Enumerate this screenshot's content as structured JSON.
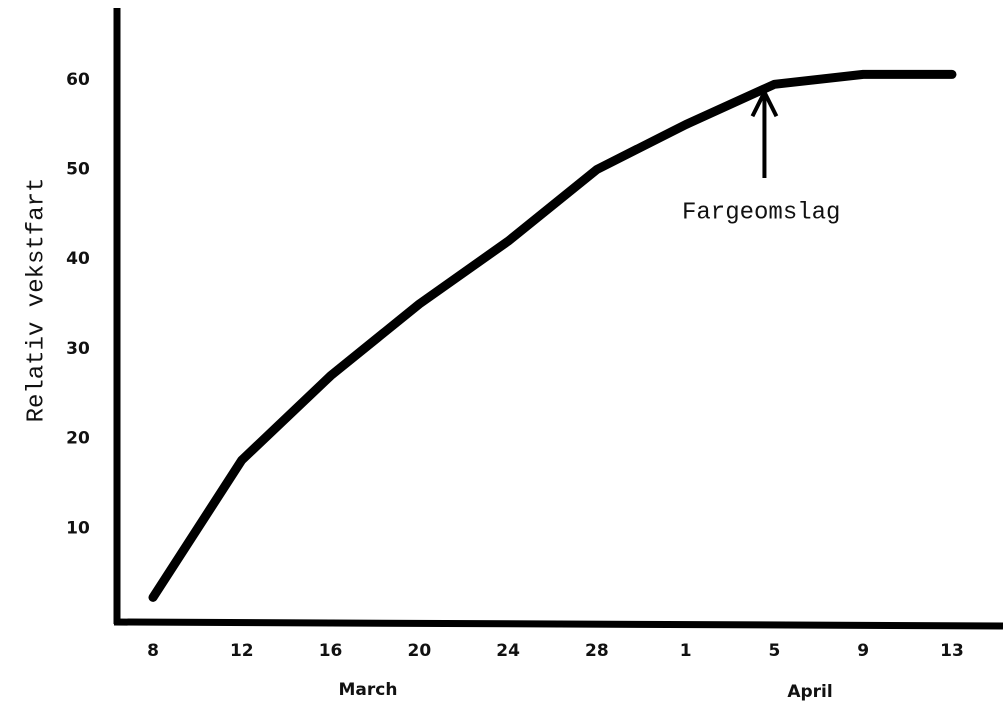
{
  "chart_data": {
    "type": "line",
    "y_label": "Relativ vekstfart",
    "annotation": "Fargeomslag",
    "categories": [
      "8",
      "12",
      "16",
      "20",
      "24",
      "28",
      "1",
      "5",
      "9",
      "13"
    ],
    "month_labels": [
      "March",
      "April"
    ],
    "values": [
      2.3,
      17.6,
      27,
      35,
      42,
      50,
      55,
      59.5,
      60.6,
      60.6
    ],
    "color": "#000000",
    "ylim": [
      0,
      68
    ],
    "yticks": [
      10,
      20,
      30,
      40,
      50,
      60
    ],
    "grid": false
  }
}
